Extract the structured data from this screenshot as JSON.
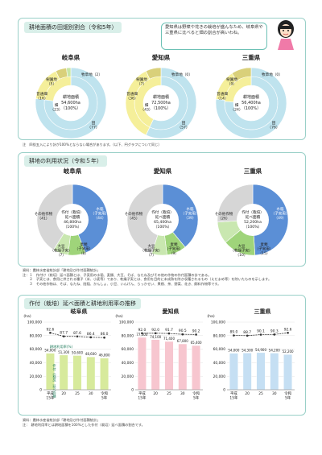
{
  "section1": {
    "title": "耕地面積の田畑別割合（令和5年）"
  },
  "speech": "愛知県は野菜や花きの栽培が盛んなため、岐阜県や三重県に比べると畑の割合が高いわね。",
  "note1": "注　四捨五入により計が100%とならない場合があります。（以下、円グラフについて同じ）",
  "section2": {
    "title": "耕地の利用状況（令和５年）"
  },
  "sources2": [
    "資料：農林水産省統計部「耕地及び作付面積統計」",
    "注：１　作付け（栽培）延べ面積とは、子実用の水稲、麦類、大豆、そば、なたね及びその他の作物の作付面積の計である。",
    "　　２　子実とは、食用に供される種子（米、小麦等）であり、乾燥子実とは、食用を目的に未成熟を除き収穫されるもの（えだまめ等）を除いたものを示します。",
    "　　３　その他作物は、そば、なたね、陸稲、かんしょ、小豆、いんげん、らっかせい、果樹、茶、野菜、花き、飼料作物等です。"
  ],
  "section3": {
    "title": "作付（栽培）延べ面積と耕地利用率の推移"
  },
  "sources3": [
    "資料：農林水産省統計部「耕地及び作付面積統計」",
    "注：　耕地利用率とは耕地面積を100%とした作付（栽培）延べ面積の割合です。"
  ],
  "chart_data": [
    {
      "type": "pie",
      "title": "岐阜県",
      "center_lines": [
        "耕地面積",
        "54,600ha",
        "（100%）"
      ],
      "slices": [
        {
          "label": "田",
          "value": 77,
          "color": "#bfe3ee"
        },
        {
          "label": "畑",
          "value": 23,
          "color": "#f5ef9a"
        }
      ],
      "outer_slices": [
        {
          "label": "田",
          "value": 77,
          "color": "#bfe3ee"
        },
        {
          "label": "普通畑",
          "value": 16,
          "color": "#f5ef9a"
        },
        {
          "label": "樹園地",
          "value": 5,
          "color": "#d9d07a"
        },
        {
          "label": "牧草地",
          "value": 2,
          "color": "#c7e6a6"
        }
      ],
      "labels": [
        "田\n（77）",
        "普通畑\n（16）",
        "樹園地\n（5）",
        "畑\n（23）",
        "牧草地（2）"
      ]
    },
    {
      "type": "pie",
      "title": "愛知県",
      "center_lines": [
        "耕地面積",
        "72,500ha",
        "（100%）"
      ],
      "slices": [
        {
          "label": "田",
          "value": 57,
          "color": "#bfe3ee"
        },
        {
          "label": "畑",
          "value": 43,
          "color": "#f5ef9a"
        }
      ],
      "outer_slices": [
        {
          "label": "田",
          "value": 57,
          "color": "#bfe3ee"
        },
        {
          "label": "普通畑",
          "value": 36,
          "color": "#f5ef9a"
        },
        {
          "label": "樹園地",
          "value": 7,
          "color": "#d9d07a"
        },
        {
          "label": "牧草地",
          "value": 0,
          "color": "#c7e6a6"
        }
      ],
      "labels": [
        "田\n（57）",
        "普通畑\n（36）",
        "樹園地\n（7）",
        "畑\n（43）",
        "牧草地（0）"
      ]
    },
    {
      "type": "pie",
      "title": "三重県",
      "center_lines": [
        "耕地面積",
        "56,400ha",
        "（100%）"
      ],
      "slices": [
        {
          "label": "田",
          "value": 76,
          "color": "#bfe3ee"
        },
        {
          "label": "畑",
          "value": 24,
          "color": "#f5ef9a"
        }
      ],
      "outer_slices": [
        {
          "label": "田",
          "value": 76,
          "color": "#bfe3ee"
        },
        {
          "label": "普通畑",
          "value": 14,
          "color": "#f5ef9a"
        },
        {
          "label": "樹園地",
          "value": 9,
          "color": "#d9d07a"
        },
        {
          "label": "牧草地",
          "value": 0,
          "color": "#c7e6a6"
        }
      ],
      "labels": [
        "田\n（76）",
        "普通畑\n（14）",
        "樹園地\n（9）",
        "畑\n（24）",
        "牧草地（0）"
      ]
    },
    {
      "type": "pie",
      "title": "岐阜県",
      "center_lines": [
        "作付（栽培）",
        "延べ面積",
        "46,800ha",
        "（100%）"
      ],
      "slices": [
        {
          "label": "水稲（子実用）",
          "value": 44,
          "color": "#5b8fd6"
        },
        {
          "label": "麦類（子実用）",
          "value": 8,
          "color": "#9fd47a"
        },
        {
          "label": "大豆（乾燥子実）",
          "value": 7,
          "color": "#c9e7b0"
        },
        {
          "label": "その他作物",
          "value": 41,
          "color": "#d6d6d6"
        }
      ],
      "labels": [
        "水稲\n（子実用）\n（44）",
        "麦類\n（子実用）\n（8）",
        "大豆\n（乾燥子実）\n（7）",
        "その他作物\n（41）"
      ]
    },
    {
      "type": "pie",
      "title": "愛知県",
      "center_lines": [
        "作付（栽培）",
        "延べ面積",
        "65,400ha",
        "（100%）"
      ],
      "slices": [
        {
          "label": "水稲（子実用）",
          "value": 39,
          "color": "#5b8fd6"
        },
        {
          "label": "麦類（子実用）",
          "value": 9,
          "color": "#9fd47a"
        },
        {
          "label": "大豆（乾燥子実）",
          "value": 7,
          "color": "#c9e7b0"
        },
        {
          "label": "その他作物",
          "value": 45,
          "color": "#d6d6d6"
        }
      ],
      "labels": [
        "水稲\n（子実用）\n（39）",
        "麦類\n（子実用）\n（9）",
        "大豆\n（乾燥子実）\n（7）",
        "その他作物\n（45）"
      ]
    },
    {
      "type": "pie",
      "title": "三重県",
      "center_lines": [
        "作付（栽培）",
        "延べ面積",
        "52,200ha",
        "（100%）"
      ],
      "slices": [
        {
          "label": "水稲（子実用）",
          "value": 49,
          "color": "#5b8fd6"
        },
        {
          "label": "麦類（子実用）",
          "value": 15,
          "color": "#9fd47a"
        },
        {
          "label": "大豆（乾燥子実）",
          "value": 10,
          "color": "#c9e7b0"
        },
        {
          "label": "その他作物",
          "value": 26,
          "color": "#d6d6d6"
        }
      ],
      "labels": [
        "水稲\n（子実用）\n（49）",
        "麦類\n（子実用）\n（15）",
        "大豆\n（乾燥子実）\n（10）",
        "その他作物\n（26）"
      ]
    },
    {
      "type": "bar",
      "title": "岐阜県",
      "ylabel": "(ha)",
      "ylim": [
        0,
        100000
      ],
      "yticks": [
        "0",
        "20,000",
        "40,000",
        "60,000",
        "80,000",
        "100,000"
      ],
      "categories": [
        "平成\n15年",
        "20",
        "25",
        "30",
        "令和\n5年"
      ],
      "values": [
        54000,
        51300,
        50600,
        48600,
        46800
      ],
      "value_labels": [
        "54,000",
        "51,300",
        "50,600",
        "48,600",
        "46,800"
      ],
      "line_values": [
        92.6,
        87.7,
        87.6,
        86.4,
        86.0
      ],
      "line_labels": [
        "92.6",
        "87.7",
        "87.6",
        "86.4",
        "86.0"
      ],
      "bar_color": "#d7ea9c",
      "bar_text": "作付（栽培）延べ面積",
      "line_text": "耕地利用率(%)"
    },
    {
      "type": "bar",
      "title": "愛知県",
      "ylabel": "(ha)",
      "ylim": [
        0,
        100000
      ],
      "yticks": [
        "0",
        "20,000",
        "40,000",
        "60,000",
        "80,000",
        "100,000"
      ],
      "categories": [
        "平成\n15年",
        "20",
        "25",
        "30",
        "令和\n5年"
      ],
      "values": [
        77400,
        74100,
        71400,
        67800,
        65400
      ],
      "value_labels": [
        "77,400",
        "74,100",
        "71,400",
        "67,800",
        "65,400"
      ],
      "line_values": [
        92.0,
        92.0,
        91.7,
        90.5,
        90.2
      ],
      "line_labels": [
        "92.0",
        "92.0",
        "91.7",
        "90.5",
        "90.2"
      ],
      "bar_color": "#f7c6cf"
    },
    {
      "type": "bar",
      "title": "三重県",
      "ylabel": "(ha)",
      "ylim": [
        0,
        100000
      ],
      "yticks": [
        "0",
        "20,000",
        "40,000",
        "60,000",
        "80,000",
        "100,000"
      ],
      "categories": [
        "平成\n15年",
        "20",
        "25",
        "30",
        "令和\n5年"
      ],
      "values": [
        54000,
        54300,
        54900,
        54200,
        52200
      ],
      "value_labels": [
        "54,000",
        "54,300",
        "54,900",
        "54,200",
        "52,200"
      ],
      "line_values": [
        89.0,
        88.7,
        90.1,
        90.3,
        92.6
      ],
      "line_labels": [
        "89.0",
        "88.7",
        "90.1",
        "90.3",
        "92.6"
      ],
      "bar_color": "#c5dff3"
    }
  ]
}
